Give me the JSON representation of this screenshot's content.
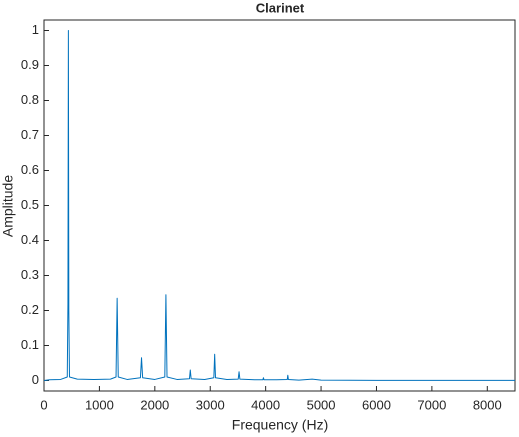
{
  "chart_data": {
    "type": "line",
    "title": "Clarinet",
    "x_label": "Frequency (Hz)",
    "y_label": "Amplitude",
    "x": [
      0,
      100,
      300,
      420,
      432,
      440,
      448,
      460,
      600,
      900,
      1200,
      1300,
      1320,
      1340,
      1500,
      1740,
      1760,
      1780,
      2000,
      2180,
      2200,
      2220,
      2400,
      2625,
      2640,
      2655,
      2900,
      3065,
      3080,
      3095,
      3300,
      3505,
      3520,
      3535,
      3800,
      3950,
      3960,
      3970,
      4200,
      4390,
      4400,
      4410,
      4600,
      4840,
      5000,
      6000,
      7000,
      8500
    ],
    "values": [
      0,
      0.002,
      0.003,
      0.01,
      0.22,
      1,
      0.2,
      0.01,
      0.004,
      0.003,
      0.004,
      0.01,
      0.235,
      0.01,
      0.003,
      0.008,
      0.065,
      0.008,
      0.003,
      0.01,
      0.245,
      0.01,
      0.003,
      0.005,
      0.03,
      0.005,
      0.003,
      0.008,
      0.075,
      0.008,
      0.003,
      0.004,
      0.025,
      0.004,
      0.002,
      0.002,
      0.008,
      0.002,
      0.002,
      0.003,
      0.015,
      0.003,
      0.001,
      0.004,
      0.001,
      0.0005,
      0.0003,
      0.0002
    ],
    "color": "#0072bd",
    "xlim": [
      0,
      8500
    ],
    "xticks": [
      0,
      1000,
      2000,
      3000,
      4000,
      5000,
      6000,
      7000,
      8000
    ],
    "ylim": [
      -0.03,
      1.03
    ],
    "yticks": [
      0,
      0.1,
      0.2,
      0.3,
      0.4,
      0.5,
      0.6,
      0.7,
      0.8,
      0.9,
      1
    ],
    "grid": false
  }
}
